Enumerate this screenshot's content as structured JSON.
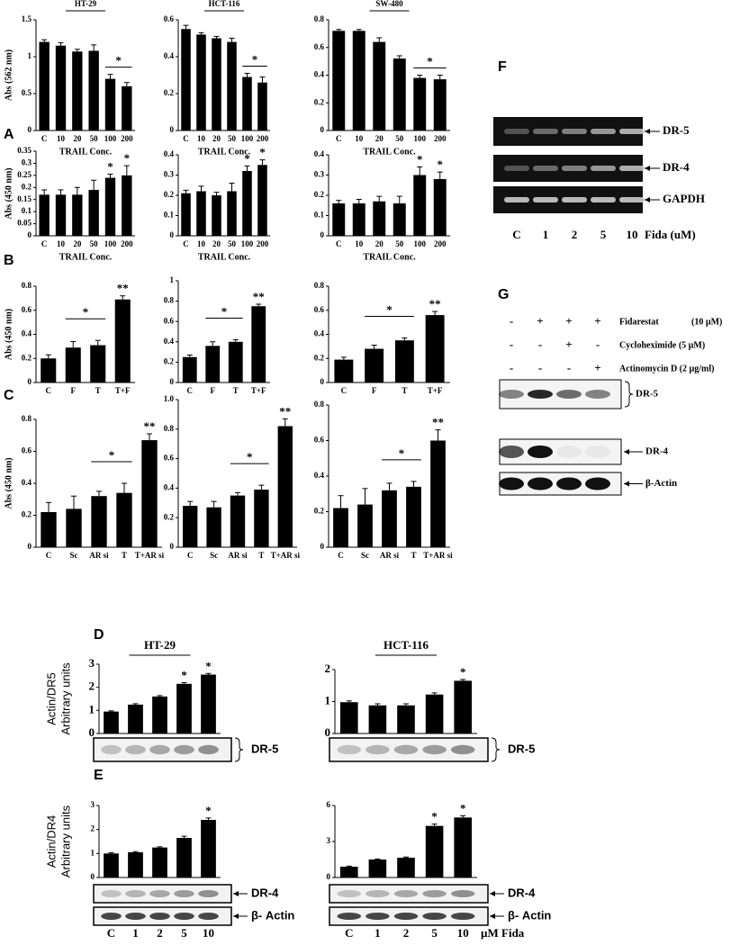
{
  "panel_labels": [
    "A",
    "B",
    "C",
    "D",
    "E"
  ],
  "chart_data": [
    {
      "type": "bar",
      "title": "HT-29",
      "y_label": "Abs (562 nm)",
      "x_label": "TRAIL Conc.",
      "categories": [
        "C",
        "10",
        "20",
        "50",
        "100",
        "200"
      ],
      "values": [
        1.2,
        1.15,
        1.07,
        1.08,
        0.7,
        0.6
      ],
      "errors": [
        0.03,
        0.04,
        0.03,
        0.08,
        0.06,
        0.05
      ],
      "color": "#000000",
      "ylim": [
        0,
        1.5
      ],
      "yticks": [
        0,
        0.5,
        1,
        1.5
      ],
      "bracket": {
        "label": "*",
        "categories": [
          4,
          5
        ]
      }
    },
    {
      "type": "bar",
      "title": "HCT-116",
      "x_label": "TRAIL Conc.",
      "categories": [
        "C",
        "10",
        "20",
        "50",
        "100",
        "200"
      ],
      "values": [
        0.55,
        0.52,
        0.5,
        0.48,
        0.29,
        0.26
      ],
      "errors": [
        0.02,
        0.01,
        0.01,
        0.02,
        0.02,
        0.03
      ],
      "color": "#000000",
      "ylim": [
        0,
        0.6
      ],
      "yticks": [
        0,
        0.2,
        0.4,
        0.6
      ],
      "bracket": {
        "label": "*",
        "categories": [
          4,
          5
        ]
      }
    },
    {
      "type": "bar",
      "title": "SW-480",
      "x_label": "TRAIL Conc.",
      "categories": [
        "C",
        "10",
        "20",
        "50",
        "100",
        "200"
      ],
      "values": [
        0.72,
        0.72,
        0.64,
        0.52,
        0.38,
        0.37
      ],
      "errors": [
        0.01,
        0.01,
        0.03,
        0.02,
        0.02,
        0.03
      ],
      "color": "#000000",
      "ylim": [
        0,
        0.8
      ],
      "yticks": [
        0,
        0.2,
        0.4,
        0.6,
        0.8
      ],
      "bracket": {
        "label": "*",
        "categories": [
          4,
          5
        ]
      }
    },
    {
      "type": "bar",
      "y_label": "Abs (450 nm)",
      "x_label": "TRAIL Conc.",
      "categories": [
        "C",
        "10",
        "20",
        "50",
        "100",
        "200"
      ],
      "values": [
        0.17,
        0.17,
        0.17,
        0.19,
        0.24,
        0.25
      ],
      "errors": [
        0.02,
        0.02,
        0.03,
        0.04,
        0.015,
        0.04
      ],
      "color": "#000000",
      "ylim": [
        0,
        0.35
      ],
      "yticks": [
        0,
        0.05,
        0.1,
        0.15,
        0.2,
        0.25,
        0.3,
        0.35
      ],
      "significance": [
        null,
        null,
        null,
        null,
        "*",
        "*"
      ]
    },
    {
      "type": "bar",
      "x_label": "TRAIL Conc.",
      "categories": [
        "C",
        "10",
        "20",
        "50",
        "100",
        "200"
      ],
      "values": [
        0.21,
        0.22,
        0.2,
        0.22,
        0.32,
        0.35
      ],
      "errors": [
        0.015,
        0.025,
        0.015,
        0.04,
        0.025,
        0.025
      ],
      "color": "#000000",
      "ylim": [
        0,
        0.4
      ],
      "yticks": [
        0,
        0.1,
        0.2,
        0.3,
        0.4
      ],
      "significance": [
        null,
        null,
        null,
        null,
        "*",
        "*"
      ]
    },
    {
      "type": "bar",
      "x_label": "TRAIL Conc.",
      "categories": [
        "C",
        "10",
        "20",
        "50",
        "100",
        "200"
      ],
      "values": [
        0.16,
        0.16,
        0.17,
        0.16,
        0.3,
        0.28
      ],
      "errors": [
        0.015,
        0.02,
        0.025,
        0.035,
        0.04,
        0.035
      ],
      "color": "#000000",
      "ylim": [
        0,
        0.4
      ],
      "yticks": [
        0,
        0.1,
        0.2,
        0.3,
        0.4
      ],
      "significance": [
        null,
        null,
        null,
        null,
        "*",
        "*"
      ]
    },
    {
      "type": "bar",
      "y_label": "Abs (450 nm)",
      "categories": [
        "C",
        "F",
        "T",
        "T+F"
      ],
      "values": [
        0.2,
        0.29,
        0.31,
        0.69
      ],
      "errors": [
        0.03,
        0.05,
        0.04,
        0.03
      ],
      "color": "#000000",
      "ylim": [
        0,
        0.8
      ],
      "yticks": [
        0,
        0.2,
        0.4,
        0.6,
        0.8
      ],
      "bracket": {
        "label": "*",
        "categories": [
          1,
          2
        ]
      },
      "significance": [
        null,
        null,
        null,
        "**"
      ]
    },
    {
      "type": "bar",
      "categories": [
        "C",
        "F",
        "T",
        "T+F"
      ],
      "values": [
        0.25,
        0.36,
        0.4,
        0.75
      ],
      "errors": [
        0.02,
        0.04,
        0.02,
        0.02
      ],
      "color": "#000000",
      "ylim": [
        0,
        1
      ],
      "yticks": [
        0,
        0.2,
        0.4,
        0.6,
        0.8,
        1
      ],
      "bracket": {
        "label": "*",
        "categories": [
          1,
          2
        ]
      },
      "significance": [
        null,
        null,
        null,
        "**"
      ]
    },
    {
      "type": "bar",
      "categories": [
        "C",
        "F",
        "T",
        "T+F"
      ],
      "values": [
        0.19,
        0.28,
        0.35,
        0.56
      ],
      "errors": [
        0.02,
        0.03,
        0.02,
        0.03
      ],
      "color": "#000000",
      "ylim": [
        0,
        0.8
      ],
      "yticks": [
        0,
        0.2,
        0.4,
        0.6,
        0.8
      ],
      "bracket": {
        "label": "*",
        "categories": [
          1,
          2
        ]
      },
      "significance": [
        null,
        null,
        null,
        "**"
      ]
    },
    {
      "type": "bar",
      "y_label": "Abs (450 nm)",
      "categories": [
        "C",
        "Sc",
        "AR si",
        "T",
        "T+AR si"
      ],
      "values": [
        0.22,
        0.24,
        0.32,
        0.34,
        0.67
      ],
      "errors": [
        0.06,
        0.08,
        0.03,
        0.06,
        0.04
      ],
      "color": "#000000",
      "ylim": [
        0,
        0.8
      ],
      "yticks": [
        0,
        0.2,
        0.4,
        0.6,
        0.8
      ],
      "bracket": {
        "label": "*",
        "categories": [
          2,
          3
        ]
      },
      "significance": [
        null,
        null,
        null,
        null,
        "**"
      ]
    },
    {
      "type": "bar",
      "categories": [
        "C",
        "Sc",
        "AR si",
        "T",
        "T+AR si"
      ],
      "values": [
        0.28,
        0.27,
        0.35,
        0.39,
        0.82
      ],
      "errors": [
        0.03,
        0.04,
        0.02,
        0.03,
        0.05
      ],
      "color": "#000000",
      "ylim": [
        0,
        1
      ],
      "yticks": [
        0,
        0.2,
        0.4,
        0.6,
        0.8,
        {
          "value": 1,
          "label": "1.0"
        }
      ],
      "bracket": {
        "label": "*",
        "categories": [
          2,
          3
        ]
      },
      "significance": [
        null,
        null,
        null,
        null,
        "**"
      ]
    },
    {
      "type": "bar",
      "categories": [
        "C",
        "Sc",
        "AR si",
        "T",
        "T+AR si"
      ],
      "values": [
        0.22,
        0.24,
        0.32,
        0.34,
        0.6
      ],
      "errors": [
        0.07,
        0.09,
        0.04,
        0.03,
        0.06
      ],
      "color": "#000000",
      "ylim": [
        0,
        0.8
      ],
      "yticks": [
        0,
        0.2,
        0.4,
        0.6,
        0.8
      ],
      "bracket": {
        "label": "*",
        "categories": [
          2,
          3
        ]
      },
      "significance": [
        null,
        null,
        null,
        null,
        "**"
      ]
    },
    {
      "type": "bar",
      "title": "HT-29",
      "y_label": [
        "Actin/DR5",
        "Arbitrary units"
      ],
      "categories": [
        null,
        null,
        null,
        null,
        null
      ],
      "values": [
        0.95,
        1.25,
        1.6,
        2.15,
        2.55
      ],
      "errors": [
        0.03,
        0.04,
        0.04,
        0.05,
        0.05
      ],
      "color": "#000000",
      "ylim": [
        0,
        3
      ],
      "yticks": [
        0,
        1,
        2,
        3
      ],
      "significance": [
        null,
        null,
        null,
        "*",
        "*"
      ],
      "blot_labels": [
        "DR-5"
      ]
    },
    {
      "type": "bar",
      "title": "HCT-116",
      "categories": [
        null,
        null,
        null,
        null,
        null
      ],
      "values": [
        0.98,
        0.88,
        0.88,
        1.22,
        1.65
      ],
      "errors": [
        0.04,
        0.05,
        0.05,
        0.05,
        0.04
      ],
      "color": "#000000",
      "ylim": [
        0,
        2
      ],
      "yticks": [
        0,
        1,
        2
      ],
      "significance": [
        null,
        null,
        null,
        null,
        "*"
      ],
      "blot_labels": [
        "DR-5"
      ]
    },
    {
      "type": "bar",
      "y_label": [
        "Actin/DR4",
        "Arbitrary units"
      ],
      "categories": [
        "C",
        "1",
        "2",
        "5",
        "10"
      ],
      "values": [
        1.0,
        1.05,
        1.25,
        1.65,
        2.4
      ],
      "errors": [
        0.03,
        0.03,
        0.03,
        0.07,
        0.08
      ],
      "color": "#000000",
      "ylim": [
        0,
        3
      ],
      "yticks": [
        0,
        1,
        2,
        3
      ],
      "significance": [
        null,
        null,
        null,
        null,
        "*"
      ],
      "blot_labels": [
        "DR-4",
        "β- Actin"
      ]
    },
    {
      "type": "bar",
      "categories": [
        "C",
        "1",
        "2",
        "5",
        "10"
      ],
      "values": [
        0.9,
        1.5,
        1.65,
        4.3,
        5.0
      ],
      "errors": [
        0.05,
        0.04,
        0.06,
        0.15,
        0.15
      ],
      "color": "#000000",
      "ylim": [
        0,
        6
      ],
      "yticks": [
        0,
        3,
        6
      ],
      "significance": [
        null,
        null,
        null,
        "*",
        "*"
      ],
      "blot_labels": [
        "DR-4",
        "β- Actin"
      ],
      "unit": "µM Fida"
    }
  ],
  "gel": {
    "panel": "F",
    "bands": [
      "DR-5",
      "DR-4",
      "GAPDH"
    ],
    "lanes": [
      "C",
      "1",
      "2",
      "5",
      "10"
    ],
    "unit": "Fida (uM)"
  },
  "western": {
    "panel": "G",
    "treatments": [
      {
        "signs": [
          "-",
          "+",
          "+",
          "+"
        ],
        "label": "Fidarestat",
        "dose": "(10 µM)"
      },
      {
        "signs": [
          "-",
          "-",
          "+",
          "-"
        ],
        "label": "Cycloheximide (5 µM)"
      },
      {
        "signs": [
          "-",
          "-",
          "-",
          "+"
        ],
        "label": "Actinomycin D (2 µg/ml)"
      }
    ],
    "bands": [
      "DR-5",
      "DR-4",
      "β-Actin"
    ]
  }
}
